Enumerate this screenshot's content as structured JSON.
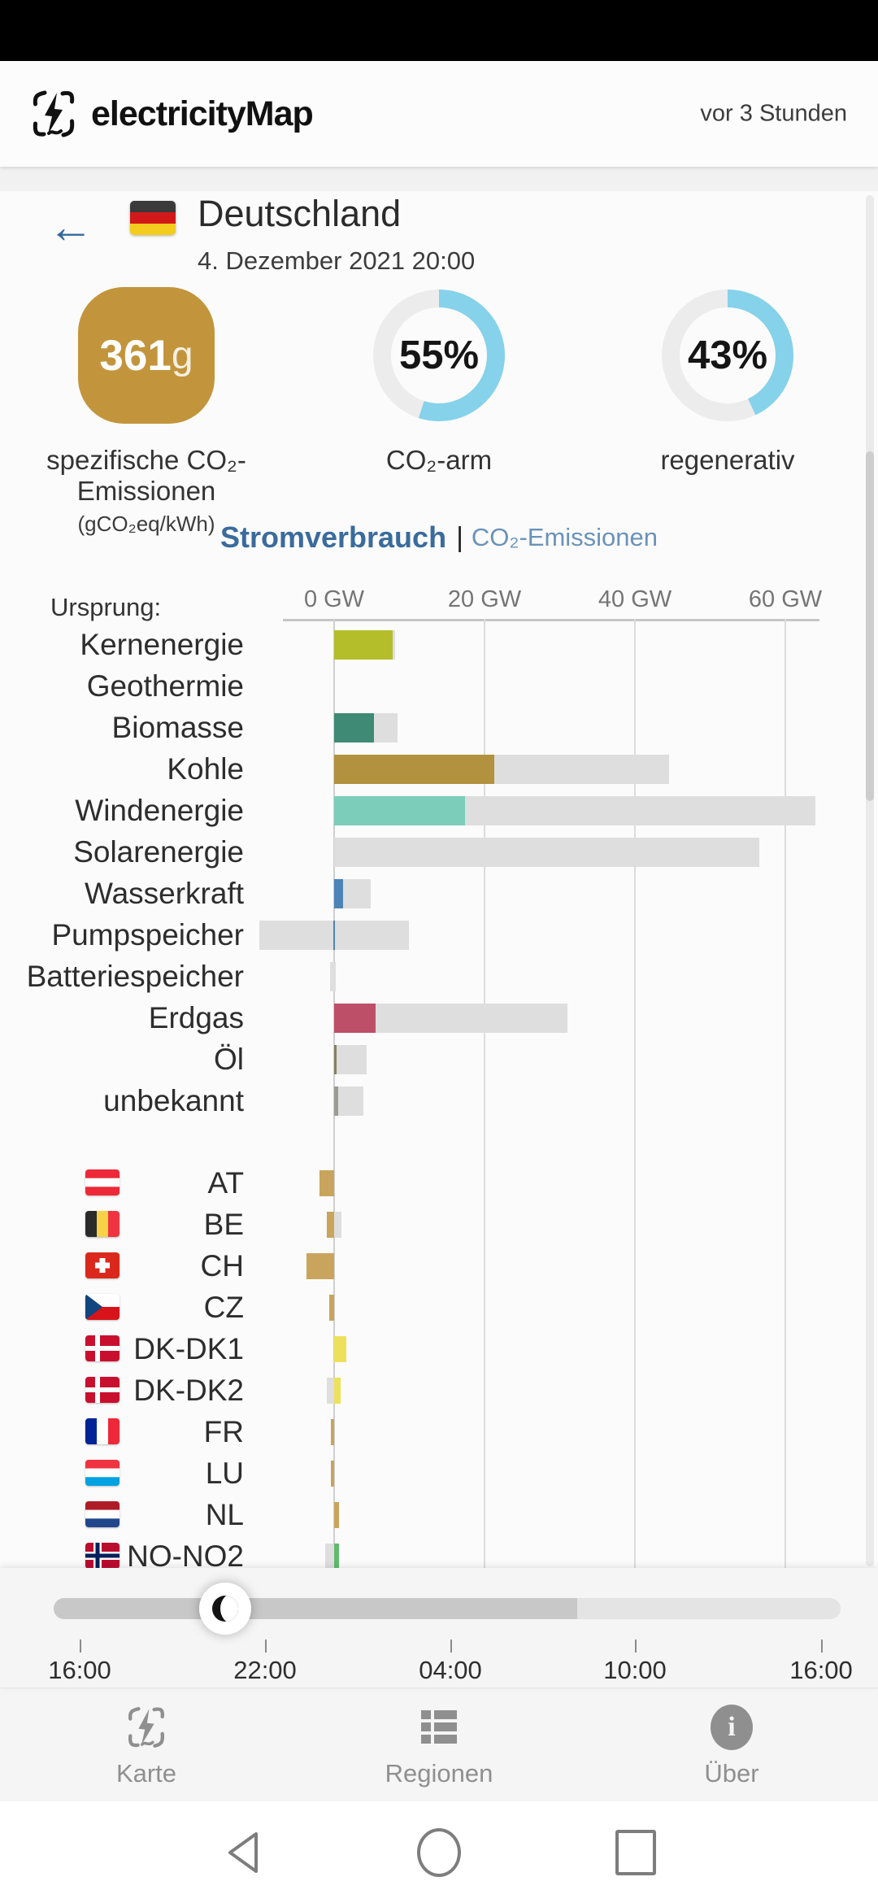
{
  "header": {
    "app_title": "electricityMap",
    "last_updated": "vor 3 Stunden"
  },
  "country": {
    "name": "Deutschland",
    "datetime": "4. Dezember 2021 20:00",
    "flag": "de"
  },
  "metrics": {
    "carbon_intensity": {
      "value": "361",
      "unit": "g",
      "label": "spezifische CO₂-Emissionen",
      "sublabel": "(gCO₂eq/kWh)",
      "box_color": "#C2953C"
    },
    "low_carbon": {
      "percent": 55,
      "display": "55%",
      "label": "CO₂-arm"
    },
    "renewable": {
      "percent": 43,
      "display": "43%",
      "label": "regenerativ"
    },
    "gauge_color": "#85D2EA",
    "gauge_track_color": "#ECECEC"
  },
  "tabs": {
    "active_label": "Stromverbrauch",
    "separator": "|",
    "inactive_label": "CO₂-Emissionen"
  },
  "chart_data": {
    "type": "bar",
    "title": "Stromverbrauch",
    "origin_label": "Ursprung:",
    "unit": "GW",
    "xlim": [
      -10.5,
      66
    ],
    "axis_ticks": [
      {
        "value": 0,
        "label": "0 GW"
      },
      {
        "value": 20,
        "label": "20 GW"
      },
      {
        "value": 40,
        "label": "40 GW"
      },
      {
        "value": 60,
        "label": "60 GW"
      }
    ],
    "production": [
      {
        "label": "Kernenergie",
        "value": 7.8,
        "capacity": [
          0,
          8.1
        ],
        "color": "#B4BE2B"
      },
      {
        "label": "Geothermie",
        "value": 0,
        "capacity": [
          0,
          0
        ],
        "color": "#B4BE2B"
      },
      {
        "label": "Biomasse",
        "value": 5.3,
        "capacity": [
          0,
          8.4
        ],
        "color": "#3E8A74"
      },
      {
        "label": "Kohle",
        "value": 21.3,
        "capacity": [
          0,
          44.5
        ],
        "color": "#B2913F"
      },
      {
        "label": "Windenergie",
        "value": 17.4,
        "capacity": [
          0,
          64.0
        ],
        "color": "#7DCDBB"
      },
      {
        "label": "Solarenergie",
        "value": 0,
        "capacity": [
          0,
          56.5
        ],
        "color": "#F3D33B"
      },
      {
        "label": "Wasserkraft",
        "value": 1.2,
        "capacity": [
          0,
          4.9
        ],
        "color": "#4C84B7"
      },
      {
        "label": "Pumpspeicher",
        "value": -0.1,
        "capacity": [
          -9.9,
          9.9
        ],
        "color": "#4C84B7"
      },
      {
        "label": "Batteriespeicher",
        "value": 0,
        "capacity": [
          -0.5,
          0.2
        ],
        "color": "#9A9A9A"
      },
      {
        "label": "Erdgas",
        "value": 5.5,
        "capacity": [
          0,
          31.0
        ],
        "color": "#BD5068"
      },
      {
        "label": "Öl",
        "value": 0.3,
        "capacity": [
          0,
          4.3
        ],
        "color": "#857F63"
      },
      {
        "label": "unbekannt",
        "value": 0.5,
        "capacity": [
          0,
          3.9
        ],
        "color": "#9C9C94"
      }
    ],
    "exchanges": [
      {
        "label": "AT",
        "flag": "at",
        "value": -2.0,
        "capacity": [
          0,
          0
        ],
        "color": "#C9A45C"
      },
      {
        "label": "BE",
        "flag": "be",
        "value": -1.0,
        "capacity": [
          0,
          1.0
        ],
        "color": "#C9A45C"
      },
      {
        "label": "CH",
        "flag": "ch",
        "value": -3.7,
        "capacity": [
          0,
          0
        ],
        "color": "#C9A45C"
      },
      {
        "label": "CZ",
        "flag": "cz",
        "value": -0.7,
        "capacity": [
          0,
          0
        ],
        "color": "#C9A45C"
      },
      {
        "label": "DK-DK1",
        "flag": "dk",
        "value": 1.6,
        "capacity": [
          0,
          0
        ],
        "color": "#EDE15B"
      },
      {
        "label": "DK-DK2",
        "flag": "dk",
        "value": 0.9,
        "capacity": [
          -1.0,
          0
        ],
        "color": "#EDE15B"
      },
      {
        "label": "FR",
        "flag": "fr",
        "value": -0.4,
        "capacity": [
          0,
          0
        ],
        "color": "#C9A45C"
      },
      {
        "label": "LU",
        "flag": "lu",
        "value": -0.4,
        "capacity": [
          0,
          0
        ],
        "color": "#C9A45C"
      },
      {
        "label": "NL",
        "flag": "nl",
        "value": 0.6,
        "capacity": [
          0,
          0
        ],
        "color": "#C9A45C"
      },
      {
        "label": "NO-NO2",
        "flag": "no",
        "value": 0.6,
        "capacity": [
          -1.2,
          0
        ],
        "color": "#62BA6E"
      }
    ]
  },
  "timeline": {
    "tick_labels": [
      "16:00",
      "22:00",
      "04:00",
      "10:00",
      "16:00"
    ],
    "selected_time": "20:00",
    "fill_fraction": 0.665,
    "thumb_fraction": 0.185,
    "thumb_icon": "moon-icon"
  },
  "nav": {
    "items": [
      {
        "label": "Karte",
        "icon": "map-icon"
      },
      {
        "label": "Regionen",
        "icon": "list-icon"
      },
      {
        "label": "Über",
        "icon": "info-icon"
      }
    ]
  },
  "android_nav": {
    "back": "back-icon",
    "home": "home-icon",
    "recents": "recents-icon"
  }
}
